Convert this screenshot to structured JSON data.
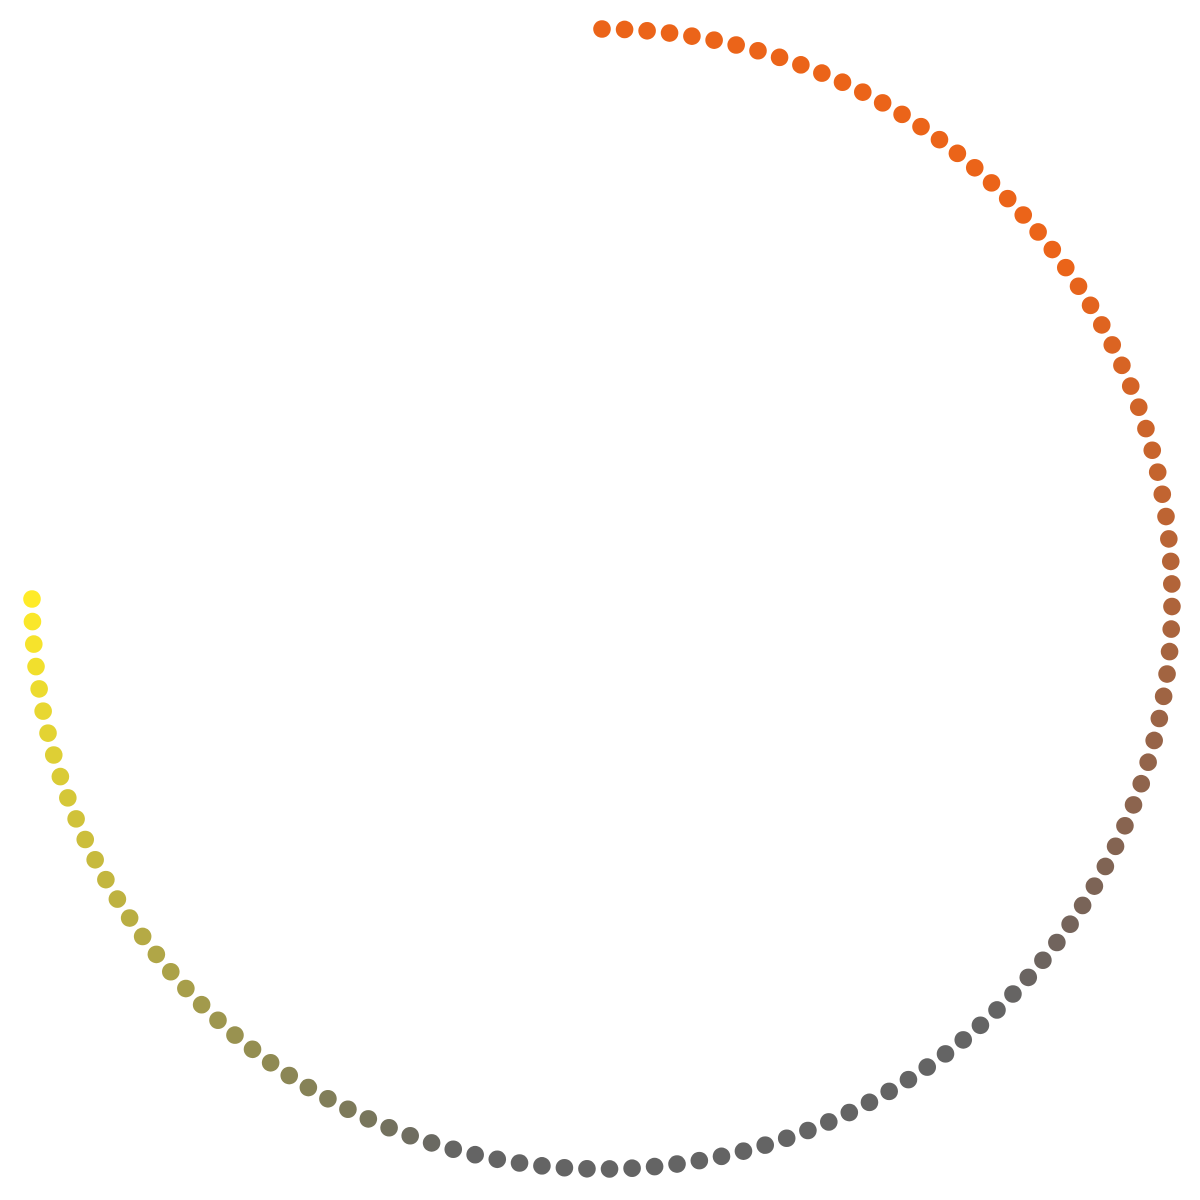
{
  "spinner": {
    "dot_count": 120,
    "arc_fraction": 0.75,
    "colors": {
      "start": "#eb6419",
      "middle": "#646464",
      "end": "#ffeb28",
      "background": "#ffffff"
    }
  }
}
